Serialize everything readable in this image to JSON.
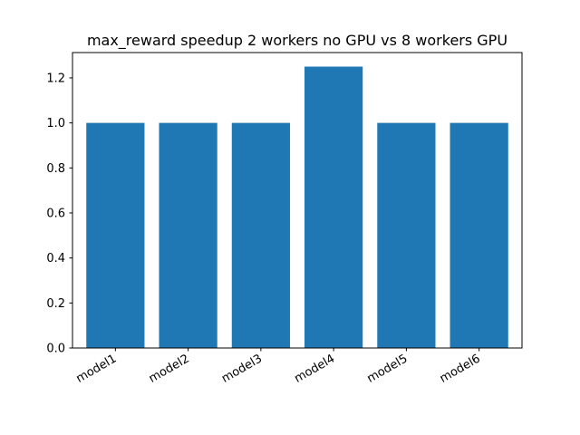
{
  "chart_data": {
    "type": "bar",
    "title": "max_reward speedup 2 workers no GPU vs 8 workers GPU",
    "xlabel": "",
    "ylabel": "",
    "categories": [
      "model1",
      "model2",
      "model3",
      "model4",
      "model5",
      "model6"
    ],
    "values": [
      1.0,
      1.0,
      1.0,
      1.25,
      1.0,
      1.0
    ],
    "ylim": [
      0,
      1.3125
    ],
    "yticks": [
      0.0,
      0.2,
      0.4,
      0.6,
      0.8,
      1.0,
      1.2
    ],
    "ytick_labels": [
      "0.0",
      "0.2",
      "0.4",
      "0.6",
      "0.8",
      "1.0",
      "1.2"
    ],
    "xtick_rotation_deg": 30,
    "grid": false,
    "legend": "none",
    "bar_color": "#1f77b4"
  }
}
